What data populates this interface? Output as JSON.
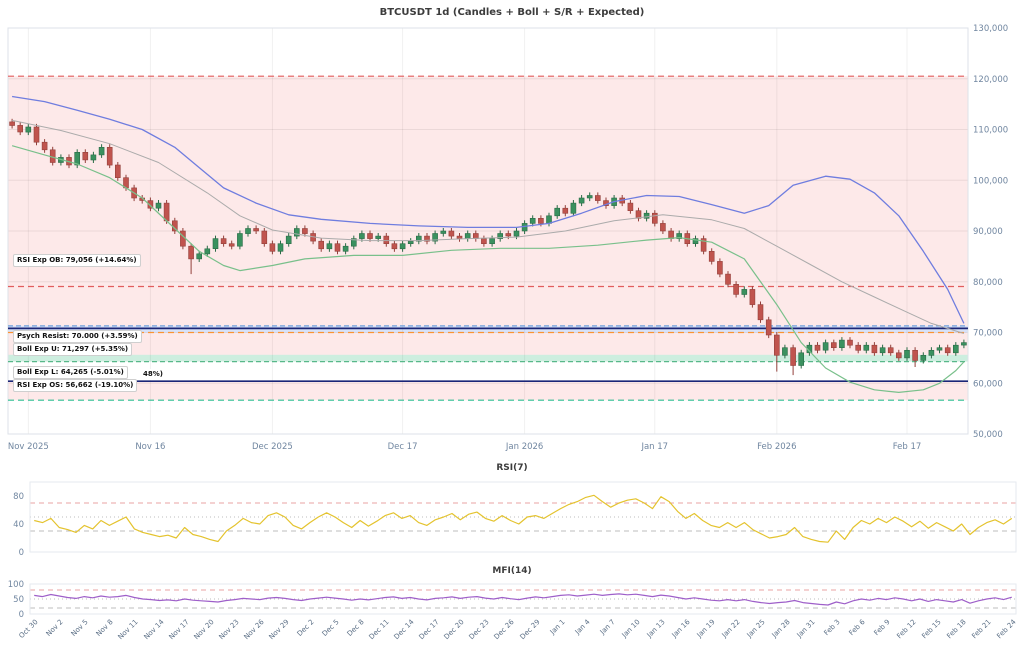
{
  "chart_data": [
    {
      "id": "main",
      "type": "candlestick",
      "title": "BTCUSDT 1d (Candles + Boll + S/R + Expected)",
      "ylim": [
        50000,
        130000
      ],
      "grid": true,
      "y_ticks": [
        {
          "v": 50000,
          "label": "50,000"
        },
        {
          "v": 60000,
          "label": "60,000"
        },
        {
          "v": 70000,
          "label": "70,000"
        },
        {
          "v": 80000,
          "label": "80,000"
        },
        {
          "v": 90000,
          "label": "90,000"
        },
        {
          "v": 100000,
          "label": "100,000"
        },
        {
          "v": 110000,
          "label": "110,000"
        },
        {
          "v": 120000,
          "label": "120,000"
        },
        {
          "v": 130000,
          "label": "130,000"
        }
      ],
      "x_ticks": [
        {
          "i": 2,
          "label": "Nov 2025"
        },
        {
          "i": 17,
          "label": "Nov 16"
        },
        {
          "i": 32,
          "label": "Dec 2025"
        },
        {
          "i": 48,
          "label": "Dec 17"
        },
        {
          "i": 63,
          "label": "Jan 2026"
        },
        {
          "i": 79,
          "label": "Jan 17"
        },
        {
          "i": 94,
          "label": "Feb 2026"
        },
        {
          "i": 110,
          "label": "Feb 17"
        }
      ],
      "first_open": 111500,
      "default_wick": 600,
      "closes": [
        110800,
        109500,
        110500,
        107500,
        106000,
        103500,
        104500,
        103000,
        105500,
        104000,
        105000,
        106500,
        103000,
        100500,
        98500,
        96500,
        96000,
        94500,
        95500,
        92000,
        90000,
        87000,
        84500,
        85500,
        86500,
        88500,
        87500,
        87000,
        89500,
        90500,
        90000,
        87500,
        86000,
        87500,
        89000,
        90500,
        89500,
        88000,
        86500,
        87500,
        86000,
        87000,
        88500,
        89500,
        88500,
        89000,
        87500,
        86500,
        87500,
        88000,
        89000,
        88000,
        89500,
        90000,
        89000,
        88500,
        89500,
        88500,
        87500,
        88500,
        89500,
        89000,
        90000,
        91500,
        92500,
        91500,
        93000,
        94500,
        93500,
        95500,
        96500,
        97000,
        96000,
        95000,
        96500,
        95500,
        94000,
        92500,
        93500,
        91500,
        90000,
        88500,
        89500,
        87500,
        88500,
        86000,
        84000,
        81500,
        79500,
        77500,
        78500,
        75500,
        72500,
        69500,
        65500,
        67000,
        63500,
        66000,
        67500,
        66500,
        68000,
        67000,
        68500,
        67500,
        66500,
        67500,
        66000,
        67000,
        66000,
        65000,
        66500,
        64500,
        65500,
        66500,
        67000,
        66000,
        67500,
        68000
      ],
      "special_lows": {
        "22": 81500,
        "94": 62300,
        "96": 61600,
        "111": 63200
      },
      "up_color": "#3a915f",
      "up_edge": "#2a6b46",
      "down_color": "#c0544e",
      "down_edge": "#93403b",
      "overlays": [
        {
          "name": "boll-upper",
          "color": "#6f7ddf",
          "width": 1.3,
          "points": [
            [
              0,
              116500
            ],
            [
              4,
              115500
            ],
            [
              8,
              113800
            ],
            [
              12,
              112000
            ],
            [
              16,
              110000
            ],
            [
              20,
              106500
            ],
            [
              23,
              102500
            ],
            [
              26,
              98500
            ],
            [
              30,
              95500
            ],
            [
              34,
              93200
            ],
            [
              38,
              92300
            ],
            [
              44,
              91500
            ],
            [
              50,
              91000
            ],
            [
              56,
              90700
            ],
            [
              62,
              90700
            ],
            [
              66,
              91500
            ],
            [
              70,
              93500
            ],
            [
              74,
              95800
            ],
            [
              78,
              97000
            ],
            [
              82,
              96800
            ],
            [
              86,
              95200
            ],
            [
              90,
              93500
            ],
            [
              93,
              95000
            ],
            [
              96,
              99000
            ],
            [
              100,
              100800
            ],
            [
              103,
              100200
            ],
            [
              106,
              97500
            ],
            [
              109,
              93000
            ],
            [
              112,
              86000
            ],
            [
              115,
              78500
            ],
            [
              117,
              71800
            ]
          ]
        },
        {
          "name": "boll-mid",
          "color": "#ababab",
          "width": 1,
          "points": [
            [
              0,
              111800
            ],
            [
              6,
              109800
            ],
            [
              12,
              107200
            ],
            [
              18,
              103500
            ],
            [
              24,
              97500
            ],
            [
              28,
              93000
            ],
            [
              32,
              90200
            ],
            [
              38,
              88600
            ],
            [
              44,
              88100
            ],
            [
              50,
              88100
            ],
            [
              56,
              88500
            ],
            [
              62,
              88800
            ],
            [
              68,
              90000
            ],
            [
              74,
              92000
            ],
            [
              80,
              93200
            ],
            [
              86,
              92200
            ],
            [
              90,
              90500
            ],
            [
              94,
              87000
            ],
            [
              98,
              83500
            ],
            [
              102,
              80000
            ],
            [
              106,
              77000
            ],
            [
              110,
              74000
            ],
            [
              113,
              71800
            ],
            [
              117,
              69800
            ]
          ]
        },
        {
          "name": "boll-lower",
          "color": "#79c08b",
          "width": 1.2,
          "points": [
            [
              0,
              106800
            ],
            [
              4,
              105000
            ],
            [
              8,
              103200
            ],
            [
              12,
              100500
            ],
            [
              16,
              96500
            ],
            [
              20,
              90500
            ],
            [
              23,
              86000
            ],
            [
              26,
              83200
            ],
            [
              28,
              82200
            ],
            [
              32,
              83200
            ],
            [
              36,
              84500
            ],
            [
              42,
              85200
            ],
            [
              48,
              85200
            ],
            [
              54,
              86200
            ],
            [
              60,
              86600
            ],
            [
              66,
              86600
            ],
            [
              72,
              87200
            ],
            [
              78,
              88200
            ],
            [
              82,
              88700
            ],
            [
              86,
              87800
            ],
            [
              90,
              84500
            ],
            [
              94,
              75500
            ],
            [
              97,
              68000
            ],
            [
              100,
              63000
            ],
            [
              103,
              60200
            ],
            [
              106,
              58700
            ],
            [
              109,
              58200
            ],
            [
              112,
              58700
            ],
            [
              114,
              60000
            ],
            [
              116,
              62500
            ],
            [
              117,
              64200
            ]
          ]
        }
      ],
      "bands": [
        {
          "from": 120500,
          "to": 71297,
          "color": "rgba(242,110,110,0.15)"
        },
        {
          "from": 71297,
          "to": 70000,
          "color": "rgba(110,150,235,0.28)"
        },
        {
          "from": 70000,
          "to": 65600,
          "color": "rgba(242,110,110,0.15)"
        },
        {
          "from": 65600,
          "to": 64265,
          "color": "rgba(90,200,150,0.30)"
        },
        {
          "from": 60400,
          "to": 56662,
          "color": "rgba(242,110,110,0.15)"
        }
      ],
      "levels": [
        {
          "name": "expected-top",
          "price": 120500,
          "color": "#e15d5d",
          "dash": "6,4",
          "width": 1.2,
          "label": ""
        },
        {
          "name": "rsi-exp-ob",
          "price": 79056,
          "color": "#e15d5d",
          "dash": "6,4",
          "width": 1.2,
          "label": "RSI Exp OB: 79,056 (+14.64%)",
          "label_y": 261
        },
        {
          "name": "sr-resistance",
          "price": 70800,
          "color": "#1b2677",
          "dash": "",
          "width": 1.7,
          "label": ""
        },
        {
          "name": "boll-exp-u",
          "price": 71297,
          "color": "#6fa0dc",
          "dash": "5,3",
          "width": 1.2,
          "label": "Boll Exp U: 71,297 (+5.35%)",
          "label_y": 350
        },
        {
          "name": "psych-resist",
          "price": 70000,
          "color": "#fb9333",
          "dash": "6,4",
          "width": 1.3,
          "label": "Psych Resist: 70.000 (+3.59%)",
          "label_y": 337
        },
        {
          "name": "boll-exp-l",
          "price": 64265,
          "color": "#58b88a",
          "dash": "5,3",
          "width": 1.2,
          "label": "Boll Exp L: 64,265 (-5.01%)",
          "label_y": 373
        },
        {
          "name": "sr-support",
          "price": 60400,
          "color": "#1b2677",
          "dash": "",
          "width": 1.7,
          "label": "",
          "label_fragment": "48%)",
          "fragment_x": 141,
          "fragment_y": 376
        },
        {
          "name": "rsi-exp-os",
          "price": 56662,
          "color": "#2ebd92",
          "dash": "6,4",
          "width": 1.2,
          "label": "RSI Exp OS: 56,662 (-19.10%)",
          "label_y": 386
        }
      ]
    },
    {
      "id": "rsi",
      "type": "line",
      "title": "RSI(7)",
      "color": "#e4c32e",
      "ylim": [
        0,
        100
      ],
      "y_ticks": [
        0,
        40,
        80
      ],
      "guides": [
        {
          "v": 70,
          "color": "#e8a3a3",
          "dash": "5,4"
        },
        {
          "v": 50,
          "color": "#bdbdbd",
          "dash": "1,3"
        },
        {
          "v": 30,
          "color": "#bdbdbd",
          "dash": "5,4"
        }
      ],
      "values": [
        45,
        42,
        48,
        35,
        32,
        28,
        38,
        33,
        45,
        38,
        44,
        50,
        33,
        28,
        25,
        22,
        24,
        20,
        35,
        25,
        22,
        18,
        15,
        30,
        38,
        48,
        42,
        40,
        52,
        56,
        50,
        38,
        33,
        42,
        50,
        56,
        50,
        42,
        35,
        45,
        37,
        44,
        52,
        56,
        48,
        52,
        42,
        38,
        46,
        50,
        55,
        46,
        54,
        57,
        48,
        44,
        52,
        45,
        40,
        50,
        52,
        48,
        55,
        62,
        68,
        72,
        78,
        81,
        72,
        64,
        70,
        74,
        76,
        70,
        62,
        79,
        72,
        58,
        48,
        55,
        45,
        38,
        35,
        42,
        35,
        42,
        32,
        26,
        20,
        22,
        25,
        35,
        22,
        18,
        15,
        14,
        30,
        18,
        35,
        45,
        40,
        48,
        42,
        50,
        44,
        36,
        44,
        34,
        42,
        36,
        30,
        40,
        25,
        35,
        42,
        46,
        40,
        48
      ]
    },
    {
      "id": "mfi",
      "type": "line",
      "title": "MFI(14)",
      "color": "#9e5fc9",
      "ylim": [
        0,
        100
      ],
      "y_ticks": [
        0,
        50,
        100
      ],
      "guides": [
        {
          "v": 80,
          "color": "#e8a3a3",
          "dash": "5,4"
        },
        {
          "v": 50,
          "color": "#bdbdbd",
          "dash": "1,3"
        },
        {
          "v": 20,
          "color": "#bdbdbd",
          "dash": "5,4"
        }
      ],
      "values": [
        62,
        58,
        65,
        60,
        55,
        52,
        58,
        54,
        60,
        56,
        58,
        62,
        55,
        50,
        48,
        45,
        47,
        44,
        50,
        46,
        44,
        42,
        40,
        45,
        48,
        52,
        50,
        48,
        53,
        55,
        52,
        48,
        45,
        50,
        53,
        56,
        53,
        50,
        46,
        50,
        47,
        51,
        55,
        57,
        52,
        55,
        50,
        47,
        52,
        54,
        57,
        52,
        56,
        58,
        53,
        50,
        55,
        51,
        48,
        53,
        57,
        54,
        58,
        62,
        64,
        60,
        63,
        66,
        62,
        65,
        67,
        64,
        66,
        62,
        58,
        63,
        60,
        55,
        50,
        54,
        50,
        46,
        44,
        48,
        44,
        48,
        42,
        38,
        35,
        38,
        40,
        45,
        38,
        35,
        32,
        30,
        40,
        34,
        44,
        50,
        46,
        52,
        48,
        54,
        50,
        44,
        50,
        42,
        48,
        44,
        40,
        48,
        36,
        44,
        50,
        54,
        48,
        56
      ],
      "x_tick_step": 3,
      "x_tick_labels": [
        "Oct 30",
        "Nov 2",
        "Nov 5",
        "Nov 8",
        "Nov 11",
        "Nov 14",
        "Nov 17",
        "Nov 20",
        "Nov 23",
        "Nov 26",
        "Nov 29",
        "Dec 2",
        "Dec 5",
        "Dec 8",
        "Dec 11",
        "Dec 14",
        "Dec 17",
        "Dec 20",
        "Dec 23",
        "Dec 26",
        "Dec 29",
        "Jan 1",
        "Jan 4",
        "Jan 7",
        "Jan 10",
        "Jan 13",
        "Jan 16",
        "Jan 19",
        "Jan 22",
        "Jan 25",
        "Jan 28",
        "Jan 31",
        "Feb 3",
        "Feb 6",
        "Feb 9",
        "Feb 12",
        "Feb 15",
        "Feb 18",
        "Feb 21",
        "Feb 24"
      ]
    }
  ]
}
